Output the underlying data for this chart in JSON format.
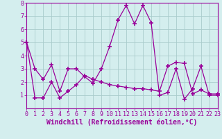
{
  "line1_x": [
    0,
    1,
    2,
    3,
    4,
    5,
    6,
    7,
    8,
    9,
    10,
    11,
    12,
    13,
    14,
    15,
    16,
    17,
    18,
    19,
    20,
    21,
    22,
    23
  ],
  "line1_y": [
    5.0,
    3.0,
    2.2,
    3.3,
    1.3,
    3.0,
    3.0,
    2.4,
    1.9,
    3.0,
    4.7,
    6.7,
    7.8,
    6.4,
    7.8,
    6.5,
    1.0,
    1.2,
    3.0,
    0.7,
    1.5,
    3.2,
    1.0,
    1.0
  ],
  "line2_x": [
    0,
    1,
    2,
    3,
    4,
    5,
    6,
    7,
    8,
    9,
    10,
    11,
    12,
    13,
    14,
    15,
    16,
    17,
    18,
    19,
    20,
    21,
    22,
    23
  ],
  "line2_y": [
    5.0,
    0.8,
    0.8,
    2.0,
    0.8,
    1.3,
    1.8,
    2.5,
    2.2,
    2.0,
    1.8,
    1.7,
    1.6,
    1.5,
    1.5,
    1.4,
    1.3,
    3.2,
    3.5,
    3.4,
    1.1,
    1.4,
    1.1,
    1.1
  ],
  "line_color": "#990099",
  "bg_color": "#d4eeee",
  "grid_color": "#aacccc",
  "xlabel": "Windchill (Refroidissement éolien,°C)",
  "xlim": [
    0,
    23
  ],
  "ylim": [
    0,
    8
  ],
  "xticks": [
    0,
    1,
    2,
    3,
    4,
    5,
    6,
    7,
    8,
    9,
    10,
    11,
    12,
    13,
    14,
    15,
    16,
    17,
    18,
    19,
    20,
    21,
    22,
    23
  ],
  "yticks": [
    1,
    2,
    3,
    4,
    5,
    6,
    7,
    8
  ],
  "marker": "+",
  "markersize": 5,
  "linewidth": 0.9,
  "xlabel_fontsize": 7.0,
  "tick_fontsize": 6.0
}
